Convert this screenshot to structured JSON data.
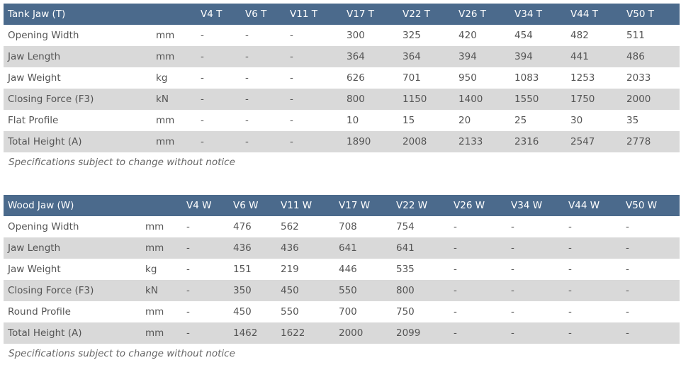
{
  "tank": {
    "title": "Tank Jaw (T)",
    "models": [
      "V4 T",
      "V6 T",
      "V11 T",
      "V17 T",
      "V22 T",
      "V26 T",
      "V34 T",
      "V44 T",
      "V50 T"
    ],
    "rows": [
      {
        "label": "Opening Width",
        "unit": "mm",
        "values": [
          "-",
          "-",
          "-",
          "300",
          "325",
          "420",
          "454",
          "482",
          "511"
        ]
      },
      {
        "label": "Jaw Length",
        "unit": "mm",
        "values": [
          "-",
          "-",
          "-",
          "364",
          "364",
          "394",
          "394",
          "441",
          "486"
        ]
      },
      {
        "label": "Jaw Weight",
        "unit": "kg",
        "values": [
          "-",
          "-",
          "-",
          "626",
          "701",
          "950",
          "1083",
          "1253",
          "2033"
        ]
      },
      {
        "label": "Closing Force (F3)",
        "unit": "kN",
        "values": [
          "-",
          "-",
          "-",
          "800",
          "1150",
          "1400",
          "1550",
          "1750",
          "2000"
        ]
      },
      {
        "label": "Flat Profile",
        "unit": "mm",
        "values": [
          "-",
          "-",
          "-",
          "10",
          "15",
          "20",
          "25",
          "30",
          "35"
        ]
      },
      {
        "label": "Total Height (A)",
        "unit": "mm",
        "values": [
          "-",
          "-",
          "-",
          "1890",
          "2008",
          "2133",
          "2316",
          "2547",
          "2778"
        ]
      }
    ],
    "note": "Specifications subject to change without notice"
  },
  "wood": {
    "title": "Wood Jaw (W)",
    "models": [
      "V4 W",
      "V6 W",
      "V11 W",
      "V17 W",
      "V22 W",
      "V26 W",
      "V34 W",
      "V44 W",
      "V50 W"
    ],
    "rows": [
      {
        "label": "Opening Width",
        "unit": "mm",
        "values": [
          "-",
          "476",
          "562",
          "708",
          "754",
          "-",
          "-",
          "-",
          "-"
        ]
      },
      {
        "label": "Jaw Length",
        "unit": "mm",
        "values": [
          "-",
          "436",
          "436",
          "641",
          "641",
          "-",
          "-",
          "-",
          "-"
        ]
      },
      {
        "label": "Jaw Weight",
        "unit": "kg",
        "values": [
          "-",
          "151",
          "219",
          "446",
          "535",
          "-",
          "-",
          "-",
          "-"
        ]
      },
      {
        "label": "Closing Force (F3)",
        "unit": "kN",
        "values": [
          "-",
          "350",
          "450",
          "550",
          "800",
          "-",
          "-",
          "-",
          "-"
        ]
      },
      {
        "label": "Round Profile",
        "unit": "mm",
        "values": [
          "-",
          "450",
          "550",
          "700",
          "750",
          "-",
          "-",
          "-",
          "-"
        ]
      },
      {
        "label": "Total Height (A)",
        "unit": "mm",
        "values": [
          "-",
          "1462",
          "1622",
          "2000",
          "2099",
          "-",
          "-",
          "-",
          "-"
        ]
      }
    ],
    "note": "Specifications subject to change without notice"
  }
}
